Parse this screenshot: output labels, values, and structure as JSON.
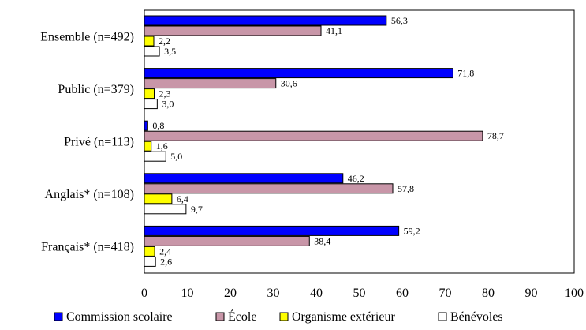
{
  "chart_data": {
    "type": "bar",
    "orientation": "horizontal",
    "categories": [
      "Ensemble (n=492)",
      "Public (n=379)",
      "Privé (n=113)",
      "Anglais* (n=108)",
      "Français* (n=418)"
    ],
    "series": [
      {
        "name": "Commission scolaire",
        "color": "#0000ff",
        "values": [
          56.3,
          71.8,
          0.8,
          46.2,
          59.2
        ],
        "labels": [
          "56,3",
          "71,8",
          "0,8",
          "46,2",
          "59,2"
        ]
      },
      {
        "name": "École",
        "color": "#c896a8",
        "values": [
          41.1,
          30.6,
          78.7,
          57.8,
          38.4
        ],
        "labels": [
          "41,1",
          "30,6",
          "78,7",
          "57,8",
          "38,4"
        ]
      },
      {
        "name": "Organisme extérieur",
        "color": "#ffff00",
        "values": [
          2.2,
          2.3,
          1.6,
          6.4,
          2.4
        ],
        "labels": [
          "2,2",
          "2,3",
          "1,6",
          "6,4",
          "2,4"
        ]
      },
      {
        "name": "Bénévoles",
        "color": "#ffffff",
        "values": [
          3.5,
          3.0,
          5.0,
          9.7,
          2.6
        ],
        "labels": [
          "3,5",
          "3,0",
          "5,0",
          "9,7",
          "2,6"
        ]
      }
    ],
    "xlim": [
      0,
      100
    ],
    "xticks": [
      "0",
      "10",
      "20",
      "30",
      "40",
      "50",
      "60",
      "70",
      "80",
      "90",
      "100"
    ],
    "grid": false,
    "legend_position": "bottom"
  }
}
